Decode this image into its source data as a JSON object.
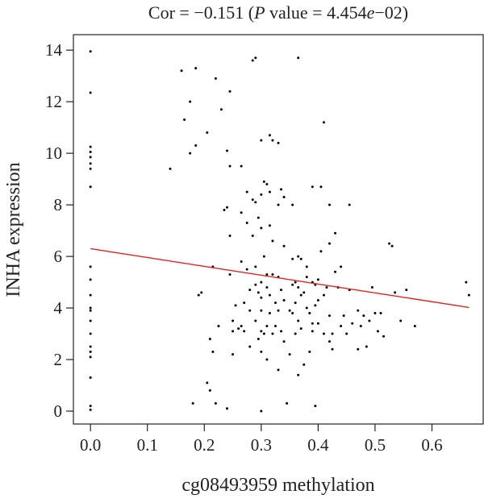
{
  "chart_data": {
    "type": "scatter",
    "title": "Cor = −0.151 (P value = 4.454e−02)",
    "title_parts": {
      "prefix": "Cor = −0.151 (",
      "p_symbol": "P",
      "value_text": " value = 4.454",
      "e_symbol": "e",
      "exponent": "−02)"
    },
    "xlabel": "cg08493959 methylation",
    "ylabel": "INHA expression",
    "xlim": [
      -0.03,
      0.69
    ],
    "ylim": [
      -0.5,
      14.6
    ],
    "xticks": [
      0.0,
      0.1,
      0.2,
      0.3,
      0.4,
      0.5,
      0.6
    ],
    "xtick_labels": [
      "0.0",
      "0.1",
      "0.2",
      "0.3",
      "0.4",
      "0.5",
      "0.6"
    ],
    "yticks": [
      0,
      2,
      4,
      6,
      8,
      10,
      12,
      14
    ],
    "ytick_labels": [
      "0",
      "2",
      "4",
      "6",
      "8",
      "10",
      "12",
      "14"
    ],
    "grid": false,
    "point_color": "#000000",
    "regression": {
      "color": "#e8201c",
      "x": [
        0.0,
        0.665
      ],
      "y": [
        6.3,
        4.02
      ]
    },
    "points": [
      [
        0.0,
        13.95
      ],
      [
        0.0,
        12.35
      ],
      [
        0.0,
        10.25
      ],
      [
        0.0,
        10.05
      ],
      [
        0.0,
        9.85
      ],
      [
        0.0,
        9.6
      ],
      [
        0.0,
        9.4
      ],
      [
        0.0,
        8.7
      ],
      [
        0.0,
        5.6
      ],
      [
        0.0,
        5.1
      ],
      [
        0.0,
        4.5
      ],
      [
        0.0,
        4.0
      ],
      [
        0.0,
        3.9
      ],
      [
        0.0,
        3.5
      ],
      [
        0.0,
        3.0
      ],
      [
        0.0,
        2.5
      ],
      [
        0.0,
        2.3
      ],
      [
        0.0,
        2.1
      ],
      [
        0.0,
        1.3
      ],
      [
        0.0,
        0.2
      ],
      [
        0.0,
        0.05
      ],
      [
        0.14,
        9.4
      ],
      [
        0.16,
        13.2
      ],
      [
        0.165,
        11.3
      ],
      [
        0.175,
        12.0
      ],
      [
        0.175,
        10.0
      ],
      [
        0.18,
        0.3
      ],
      [
        0.185,
        13.3
      ],
      [
        0.185,
        10.3
      ],
      [
        0.19,
        4.5
      ],
      [
        0.195,
        4.6
      ],
      [
        0.205,
        10.8
      ],
      [
        0.205,
        1.1
      ],
      [
        0.21,
        2.8
      ],
      [
        0.21,
        0.8
      ],
      [
        0.215,
        5.6
      ],
      [
        0.215,
        2.3
      ],
      [
        0.22,
        12.9
      ],
      [
        0.22,
        0.3
      ],
      [
        0.225,
        3.3
      ],
      [
        0.23,
        11.7
      ],
      [
        0.235,
        7.8
      ],
      [
        0.24,
        10.1
      ],
      [
        0.24,
        7.9
      ],
      [
        0.24,
        0.1
      ],
      [
        0.245,
        12.4
      ],
      [
        0.245,
        9.5
      ],
      [
        0.245,
        6.8
      ],
      [
        0.245,
        5.3
      ],
      [
        0.25,
        3.5
      ],
      [
        0.25,
        3.1
      ],
      [
        0.25,
        2.2
      ],
      [
        0.255,
        4.1
      ],
      [
        0.26,
        3.2
      ],
      [
        0.265,
        9.5
      ],
      [
        0.265,
        7.7
      ],
      [
        0.265,
        5.8
      ],
      [
        0.265,
        3.3
      ],
      [
        0.27,
        4.2
      ],
      [
        0.27,
        3.1
      ],
      [
        0.275,
        8.5
      ],
      [
        0.275,
        7.3
      ],
      [
        0.275,
        5.5
      ],
      [
        0.28,
        4.7
      ],
      [
        0.28,
        3.9
      ],
      [
        0.28,
        2.5
      ],
      [
        0.285,
        13.6
      ],
      [
        0.285,
        8.2
      ],
      [
        0.285,
        6.8
      ],
      [
        0.29,
        13.7
      ],
      [
        0.29,
        8.1
      ],
      [
        0.29,
        5.6
      ],
      [
        0.29,
        4.9
      ],
      [
        0.29,
        3.5
      ],
      [
        0.295,
        7.5
      ],
      [
        0.295,
        4.6
      ],
      [
        0.295,
        2.8
      ],
      [
        0.3,
        10.5
      ],
      [
        0.3,
        8.4
      ],
      [
        0.3,
        7.1
      ],
      [
        0.3,
        5.0
      ],
      [
        0.3,
        4.4
      ],
      [
        0.3,
        3.9
      ],
      [
        0.3,
        3.1
      ],
      [
        0.3,
        2.3
      ],
      [
        0.3,
        0.0
      ],
      [
        0.305,
        8.9
      ],
      [
        0.305,
        6.0
      ],
      [
        0.305,
        3.0
      ],
      [
        0.31,
        8.8
      ],
      [
        0.31,
        5.3
      ],
      [
        0.31,
        4.8
      ],
      [
        0.31,
        3.3
      ],
      [
        0.31,
        2.0
      ],
      [
        0.315,
        10.7
      ],
      [
        0.315,
        8.5
      ],
      [
        0.315,
        7.2
      ],
      [
        0.315,
        4.5
      ],
      [
        0.315,
        3.8
      ],
      [
        0.32,
        10.5
      ],
      [
        0.32,
        6.6
      ],
      [
        0.32,
        5.3
      ],
      [
        0.32,
        3.0
      ],
      [
        0.325,
        4.2
      ],
      [
        0.325,
        3.3
      ],
      [
        0.33,
        10.4
      ],
      [
        0.33,
        8.0
      ],
      [
        0.33,
        5.2
      ],
      [
        0.33,
        3.9
      ],
      [
        0.33,
        1.6
      ],
      [
        0.335,
        8.6
      ],
      [
        0.335,
        4.7
      ],
      [
        0.335,
        3.1
      ],
      [
        0.34,
        8.3
      ],
      [
        0.34,
        6.4
      ],
      [
        0.34,
        4.3
      ],
      [
        0.34,
        2.7
      ],
      [
        0.345,
        0.3
      ],
      [
        0.35,
        3.9
      ],
      [
        0.35,
        2.2
      ],
      [
        0.355,
        8.0
      ],
      [
        0.355,
        5.9
      ],
      [
        0.355,
        4.9
      ],
      [
        0.355,
        3.8
      ],
      [
        0.36,
        5.0
      ],
      [
        0.36,
        4.2
      ],
      [
        0.36,
        3.0
      ],
      [
        0.365,
        13.7
      ],
      [
        0.365,
        6.0
      ],
      [
        0.365,
        4.8
      ],
      [
        0.365,
        3.5
      ],
      [
        0.365,
        1.4
      ],
      [
        0.37,
        5.9
      ],
      [
        0.37,
        4.5
      ],
      [
        0.37,
        3.2
      ],
      [
        0.375,
        4.6
      ],
      [
        0.375,
        1.8
      ],
      [
        0.38,
        5.6
      ],
      [
        0.38,
        5.2
      ],
      [
        0.38,
        4.0
      ],
      [
        0.385,
        3.8
      ],
      [
        0.385,
        2.3
      ],
      [
        0.39,
        8.7
      ],
      [
        0.39,
        5.0
      ],
      [
        0.39,
        3.4
      ],
      [
        0.39,
        3.1
      ],
      [
        0.395,
        4.9
      ],
      [
        0.395,
        4.1
      ],
      [
        0.395,
        0.2
      ],
      [
        0.4,
        5.1
      ],
      [
        0.4,
        4.3
      ],
      [
        0.4,
        3.4
      ],
      [
        0.405,
        8.7
      ],
      [
        0.405,
        6.2
      ],
      [
        0.41,
        11.2
      ],
      [
        0.41,
        4.5
      ],
      [
        0.41,
        3.0
      ],
      [
        0.415,
        4.8
      ],
      [
        0.42,
        8.0
      ],
      [
        0.42,
        6.5
      ],
      [
        0.42,
        3.7
      ],
      [
        0.42,
        2.7
      ],
      [
        0.425,
        3.0
      ],
      [
        0.425,
        2.4
      ],
      [
        0.43,
        6.9
      ],
      [
        0.43,
        5.4
      ],
      [
        0.435,
        4.8
      ],
      [
        0.44,
        5.6
      ],
      [
        0.44,
        3.3
      ],
      [
        0.445,
        3.7
      ],
      [
        0.45,
        3.0
      ],
      [
        0.455,
        8.0
      ],
      [
        0.455,
        4.7
      ],
      [
        0.46,
        3.4
      ],
      [
        0.47,
        3.9
      ],
      [
        0.47,
        2.4
      ],
      [
        0.475,
        3.3
      ],
      [
        0.48,
        3.7
      ],
      [
        0.485,
        2.5
      ],
      [
        0.49,
        3.5
      ],
      [
        0.495,
        4.8
      ],
      [
        0.5,
        3.8
      ],
      [
        0.505,
        3.1
      ],
      [
        0.51,
        3.8
      ],
      [
        0.515,
        2.9
      ],
      [
        0.525,
        6.5
      ],
      [
        0.53,
        6.4
      ],
      [
        0.535,
        4.6
      ],
      [
        0.545,
        3.5
      ],
      [
        0.555,
        4.7
      ],
      [
        0.57,
        3.3
      ],
      [
        0.66,
        5.0
      ],
      [
        0.665,
        4.5
      ]
    ]
  }
}
